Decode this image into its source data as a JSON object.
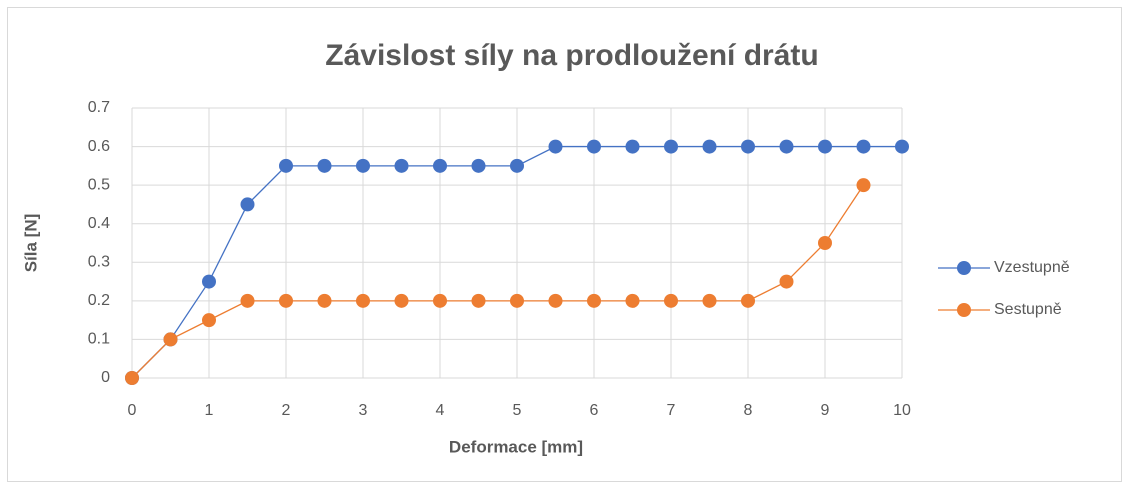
{
  "chart_data": {
    "type": "line",
    "title": "Závislost síly na prodloužení drátu",
    "x_label": "Deformace [mm]",
    "y_label": "Síla [N]",
    "x": [
      0,
      0.5,
      1,
      1.5,
      2,
      2.5,
      3,
      3.5,
      4,
      4.5,
      5,
      5.5,
      6,
      6.5,
      7,
      7.5,
      8,
      8.5,
      9,
      9.5,
      10
    ],
    "series": [
      {
        "name": "Vzestupně",
        "color": "#4472c4",
        "values": [
          0,
          0.1,
          0.25,
          0.45,
          0.55,
          0.55,
          0.55,
          0.55,
          0.55,
          0.55,
          0.55,
          0.6,
          0.6,
          0.6,
          0.6,
          0.6,
          0.6,
          0.6,
          0.6,
          0.6,
          0.6
        ]
      },
      {
        "name": "Sestupně",
        "color": "#ed7d31",
        "values": [
          0,
          0.1,
          0.15,
          0.2,
          0.2,
          0.2,
          0.2,
          0.2,
          0.2,
          0.2,
          0.2,
          0.2,
          0.2,
          0.2,
          0.2,
          0.2,
          0.2,
          0.25,
          0.35,
          0.5,
          null
        ]
      }
    ],
    "xlim": [
      0,
      10
    ],
    "xticks": [
      0,
      1,
      2,
      3,
      4,
      5,
      6,
      7,
      8,
      9,
      10
    ],
    "ylim": [
      0,
      0.7
    ],
    "yticks": [
      0,
      0.1,
      0.2,
      0.3,
      0.4,
      0.5,
      0.6,
      0.7
    ],
    "grid": true,
    "legend": "right"
  }
}
